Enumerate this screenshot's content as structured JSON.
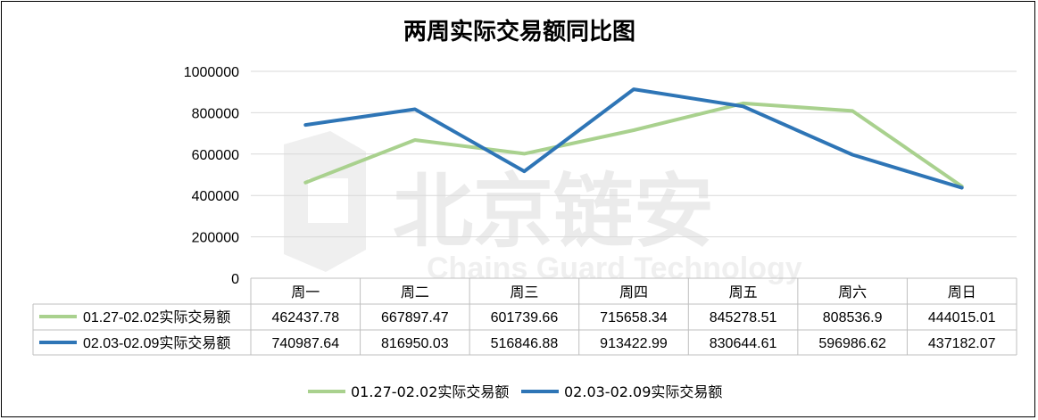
{
  "chart_data": {
    "type": "line",
    "title": "两周实际交易额同比图",
    "categories": [
      "周一",
      "周二",
      "周三",
      "周四",
      "周五",
      "周六",
      "周日"
    ],
    "ylim": [
      0,
      1000000
    ],
    "yticks": [
      "0",
      "200000",
      "400000",
      "600000",
      "800000",
      "1000000"
    ],
    "grid": true,
    "legend_position": "bottom",
    "series": [
      {
        "name": "01.27-02.02实际交易额",
        "color": "#a9d18e",
        "values": [
          462437.78,
          667897.47,
          601739.66,
          715658.34,
          845278.51,
          808536.9,
          444015.01
        ],
        "labels": [
          "462437.78",
          "667897.47",
          "601739.66",
          "715658.34",
          "845278.51",
          "808536.9",
          "444015.01"
        ]
      },
      {
        "name": "02.03-02.09实际交易额",
        "color": "#2e75b6",
        "values": [
          740987.64,
          816950.03,
          516846.88,
          913422.99,
          830644.61,
          596986.62,
          437182.07
        ],
        "labels": [
          "740987.64",
          "816950.03",
          "516846.88",
          "913422.99",
          "830644.61",
          "596986.62",
          "437182.07"
        ]
      }
    ]
  },
  "watermark": {
    "main": "北京链安",
    "sub": "Chains Guard Technology"
  }
}
